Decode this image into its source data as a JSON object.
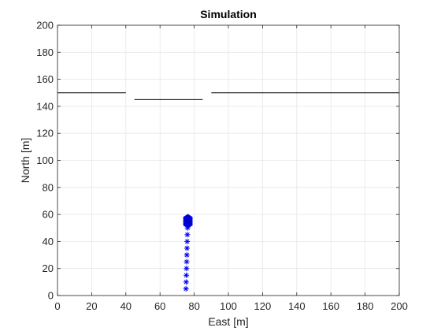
{
  "chart_data": {
    "type": "scatter",
    "title": "Simulation",
    "xlabel": "East [m]",
    "ylabel": "North [m]",
    "xlim": [
      0,
      200
    ],
    "ylim": [
      0,
      200
    ],
    "x_ticks": [
      0,
      20,
      40,
      60,
      80,
      100,
      120,
      140,
      160,
      180,
      200
    ],
    "y_ticks": [
      0,
      20,
      40,
      60,
      80,
      100,
      120,
      140,
      160,
      180,
      200
    ],
    "grid": true,
    "box": true,
    "colors": {
      "trajectory": "#0000ff",
      "walls": "#000000",
      "vehicle_fill": "#0000cd",
      "grid": "#e6e6e6",
      "axis": "#262626"
    },
    "walls": [
      {
        "x": [
          0,
          40
        ],
        "y": [
          150,
          150
        ]
      },
      {
        "x": [
          45,
          85
        ],
        "y": [
          145,
          145
        ]
      },
      {
        "x": [
          90,
          200
        ],
        "y": [
          150,
          150
        ]
      }
    ],
    "trajectory": {
      "marker": "asterisk",
      "points": [
        [
          75.2,
          5
        ],
        [
          75.3,
          10
        ],
        [
          75.4,
          15
        ],
        [
          75.5,
          20
        ],
        [
          75.6,
          25
        ],
        [
          75.7,
          30
        ],
        [
          75.8,
          35
        ],
        [
          75.9,
          40
        ],
        [
          76.0,
          45
        ],
        [
          76.1,
          50
        ]
      ]
    },
    "vehicle": {
      "shape": "hexagon",
      "x": 76.3,
      "y": 55,
      "width": 5,
      "height": 10
    }
  }
}
